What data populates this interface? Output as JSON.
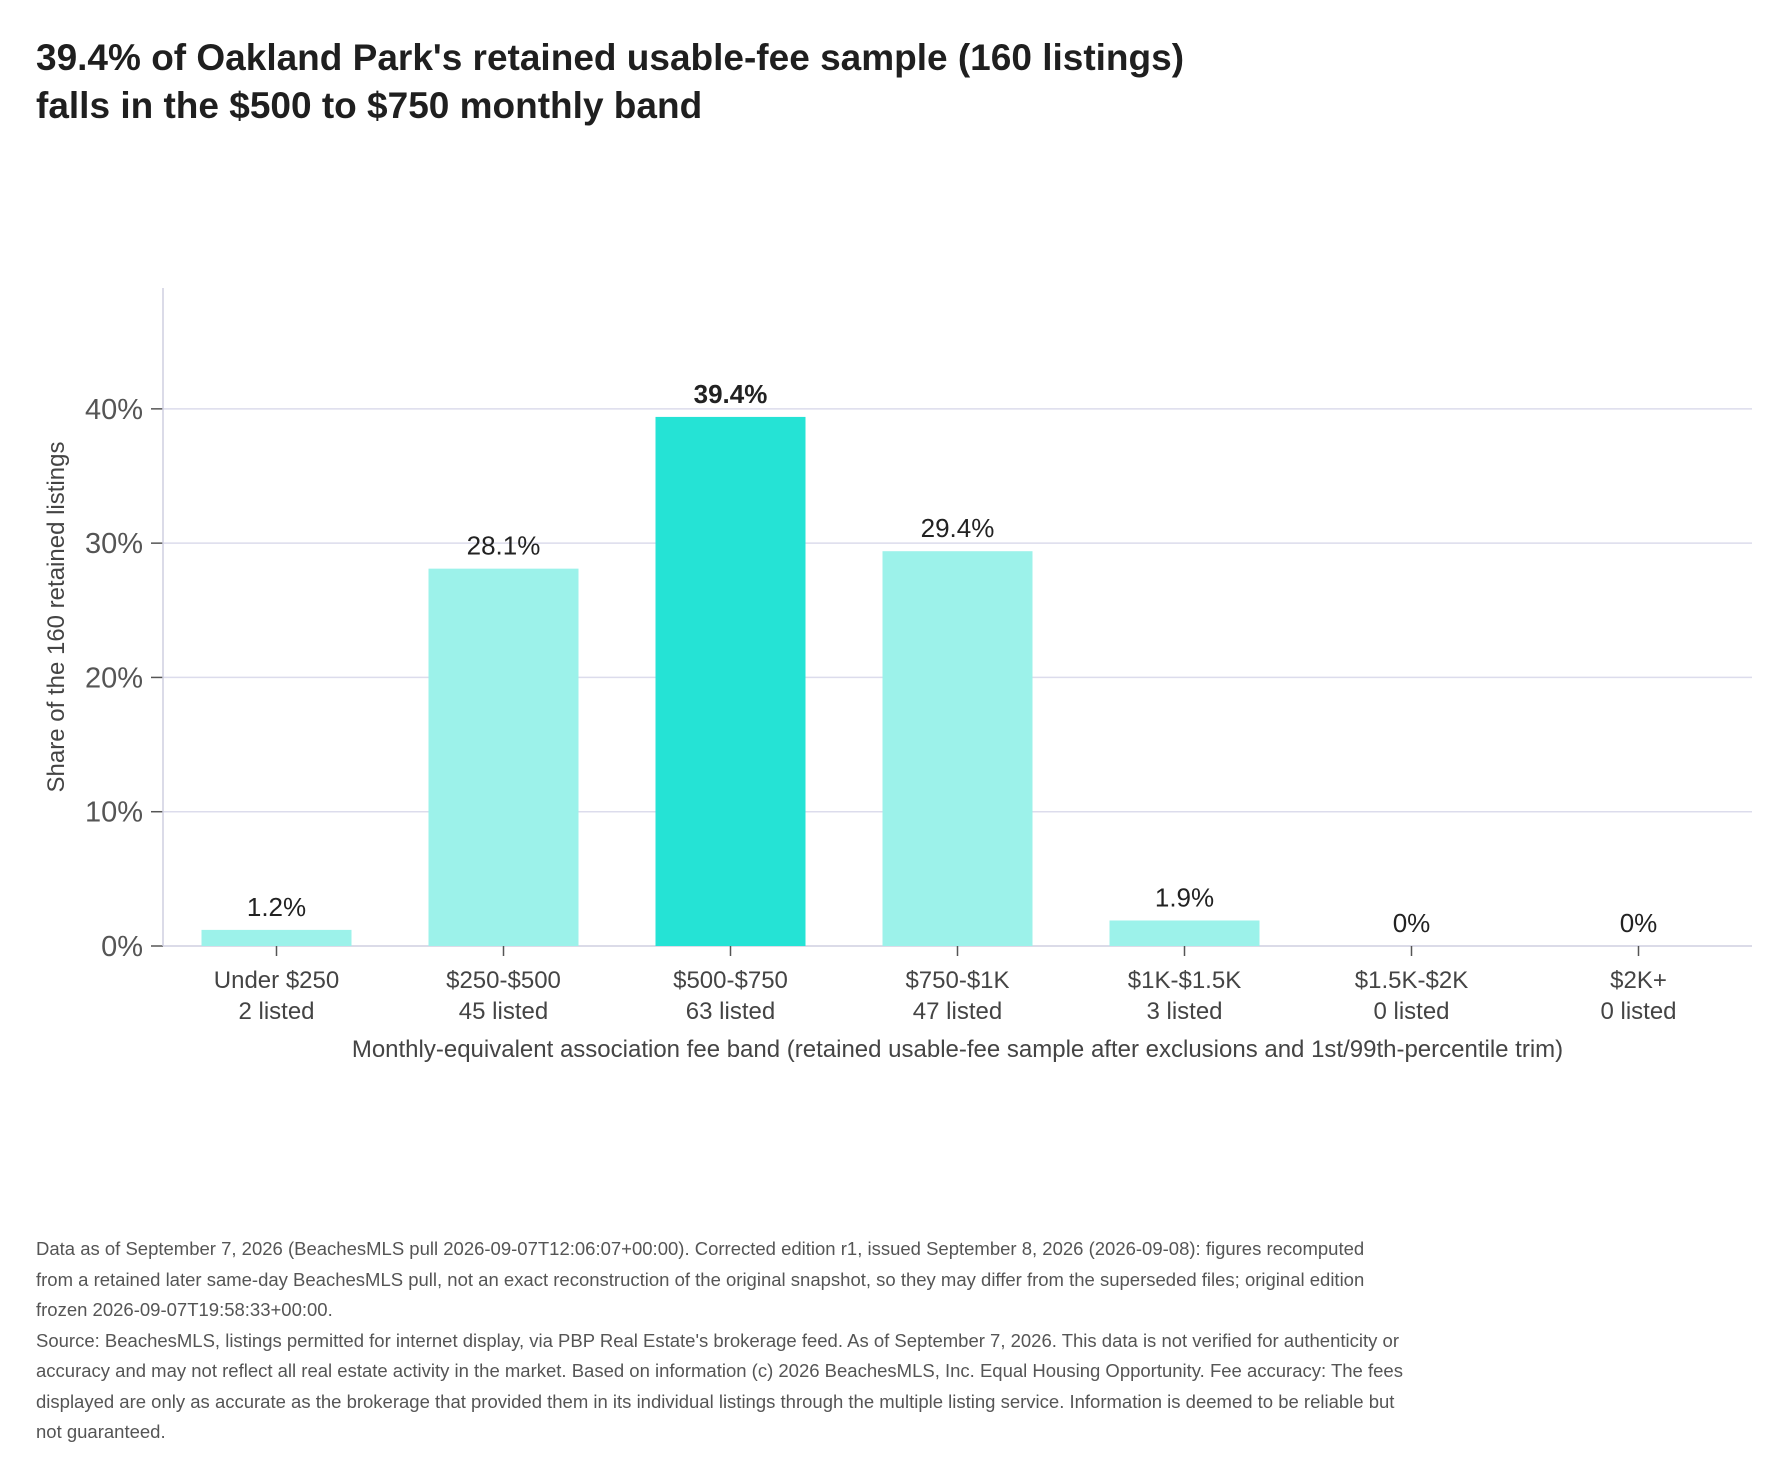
{
  "title_lines": [
    "39.4% of Oakland Park's retained usable-fee sample (160 listings)",
    "falls in the $500 to $750 monthly band"
  ],
  "chart_data": {
    "type": "bar",
    "categories": [
      "Under $250",
      "$250-$500",
      "$500-$750",
      "$750-$1K",
      "$1K-$1.5K",
      "$1.5K-$2K",
      "$2K+"
    ],
    "counts_text": [
      "2 listed",
      "45 listed",
      "63 listed",
      "47 listed",
      "3 listed",
      "0 listed",
      "0 listed"
    ],
    "values": [
      1.2,
      28.1,
      39.4,
      29.4,
      1.9,
      0,
      0
    ],
    "value_labels": [
      "1.2%",
      "28.1%",
      "39.4%",
      "29.4%",
      "1.9%",
      "0%",
      "0%"
    ],
    "highlight_index": 2,
    "ylim": [
      0,
      49
    ],
    "yticks": [
      0,
      10,
      20,
      30,
      40
    ],
    "ytick_labels": [
      "0%",
      "10%",
      "20%",
      "30%",
      "40%"
    ],
    "ylabel": "Share of the 160 retained listings",
    "xlabel": "Monthly-equivalent association fee band (retained usable-fee sample after exclusions and 1st/99th-percentile trim)",
    "grid": true,
    "colors": {
      "bar": "#9cf2ea",
      "highlight": "#25e3d5",
      "grid": "#dcdcec",
      "axis": "#cfcfe0"
    }
  },
  "notes": [
    "Data as of September 7, 2026 (BeachesMLS pull 2026-09-07T12:06:07+00:00). Corrected edition r1, issued September 8, 2026 (2026-09-08): figures recomputed from a retained later same-day BeachesMLS pull, not an exact reconstruction of the original snapshot, so they may differ from the superseded files; original edition frozen 2026-09-07T19:58:33+00:00.",
    "Source: BeachesMLS, listings permitted for internet display, via PBP Real Estate's brokerage feed. As of September 7, 2026. This data is not verified for authenticity or accuracy and may not reflect all real estate activity in the market. Based on information (c) 2026 BeachesMLS, Inc. Equal Housing Opportunity. Fee accuracy: The fees displayed are only as accurate as the brokerage that provided them in its individual listings through the multiple listing service. Information is deemed to be reliable but not guaranteed."
  ]
}
